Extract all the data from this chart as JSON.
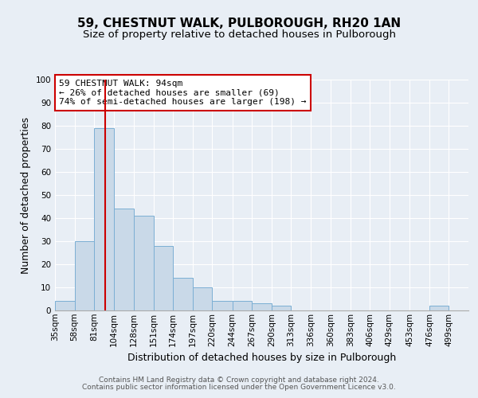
{
  "title": "59, CHESTNUT WALK, PULBOROUGH, RH20 1AN",
  "subtitle": "Size of property relative to detached houses in Pulborough",
  "xlabel": "Distribution of detached houses by size in Pulborough",
  "ylabel": "Number of detached properties",
  "bar_color": "#c9d9e8",
  "bar_edge_color": "#7bafd4",
  "bin_labels": [
    "35sqm",
    "58sqm",
    "81sqm",
    "104sqm",
    "128sqm",
    "151sqm",
    "174sqm",
    "197sqm",
    "220sqm",
    "244sqm",
    "267sqm",
    "290sqm",
    "313sqm",
    "336sqm",
    "360sqm",
    "383sqm",
    "406sqm",
    "429sqm",
    "453sqm",
    "476sqm",
    "499sqm"
  ],
  "bar_heights": [
    4,
    30,
    79,
    44,
    41,
    28,
    14,
    10,
    4,
    4,
    3,
    2,
    0,
    0,
    0,
    0,
    0,
    0,
    0,
    2,
    0
  ],
  "bin_edges": [
    35,
    58,
    81,
    104,
    128,
    151,
    174,
    197,
    220,
    244,
    267,
    290,
    313,
    336,
    360,
    383,
    406,
    429,
    453,
    476,
    499,
    522
  ],
  "ylim": [
    0,
    100
  ],
  "yticks": [
    0,
    10,
    20,
    30,
    40,
    50,
    60,
    70,
    80,
    90,
    100
  ],
  "vline_x": 94,
  "vline_color": "#cc0000",
  "annotation_text": "59 CHESTNUT WALK: 94sqm\n← 26% of detached houses are smaller (69)\n74% of semi-detached houses are larger (198) →",
  "annotation_box_color": "#ffffff",
  "annotation_box_edge_color": "#cc0000",
  "footer_line1": "Contains HM Land Registry data © Crown copyright and database right 2024.",
  "footer_line2": "Contains public sector information licensed under the Open Government Licence v3.0.",
  "background_color": "#e8eef5",
  "plot_bg_color": "#e8eef5",
  "grid_color": "#ffffff",
  "title_fontsize": 11,
  "subtitle_fontsize": 9.5,
  "axis_label_fontsize": 9,
  "tick_fontsize": 7.5,
  "annotation_fontsize": 8,
  "footer_fontsize": 6.5
}
